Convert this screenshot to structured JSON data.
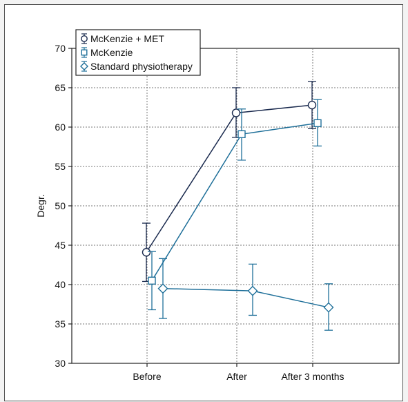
{
  "chart_data": {
    "type": "line",
    "title": "",
    "xlabel": "",
    "ylabel": "Degr.",
    "categories": [
      "Before",
      "After",
      "After 3 months"
    ],
    "ylim": [
      30,
      70
    ],
    "yticks": [
      30,
      35,
      40,
      45,
      50,
      55,
      60,
      65,
      70
    ],
    "grid": true,
    "legend_position": "top-left",
    "series": [
      {
        "name": "McKenzie + MET",
        "marker": "circle",
        "color": "#1a2a4e",
        "values": [
          44.1,
          61.8,
          62.8
        ],
        "error_low": [
          40.4,
          58.7,
          59.8
        ],
        "error_high": [
          47.8,
          65.0,
          65.8
        ]
      },
      {
        "name": "McKenzie",
        "marker": "square",
        "color": "#1e6f99",
        "values": [
          40.5,
          59.1,
          60.5
        ],
        "error_low": [
          36.8,
          55.8,
          57.6
        ],
        "error_high": [
          44.2,
          62.3,
          63.5
        ]
      },
      {
        "name": "Standard physiotherapy",
        "marker": "diamond",
        "color": "#1e6f99",
        "values": [
          39.5,
          39.2,
          37.1
        ],
        "error_low": [
          35.7,
          36.1,
          34.2
        ],
        "error_high": [
          43.3,
          42.6,
          40.1
        ]
      }
    ]
  }
}
